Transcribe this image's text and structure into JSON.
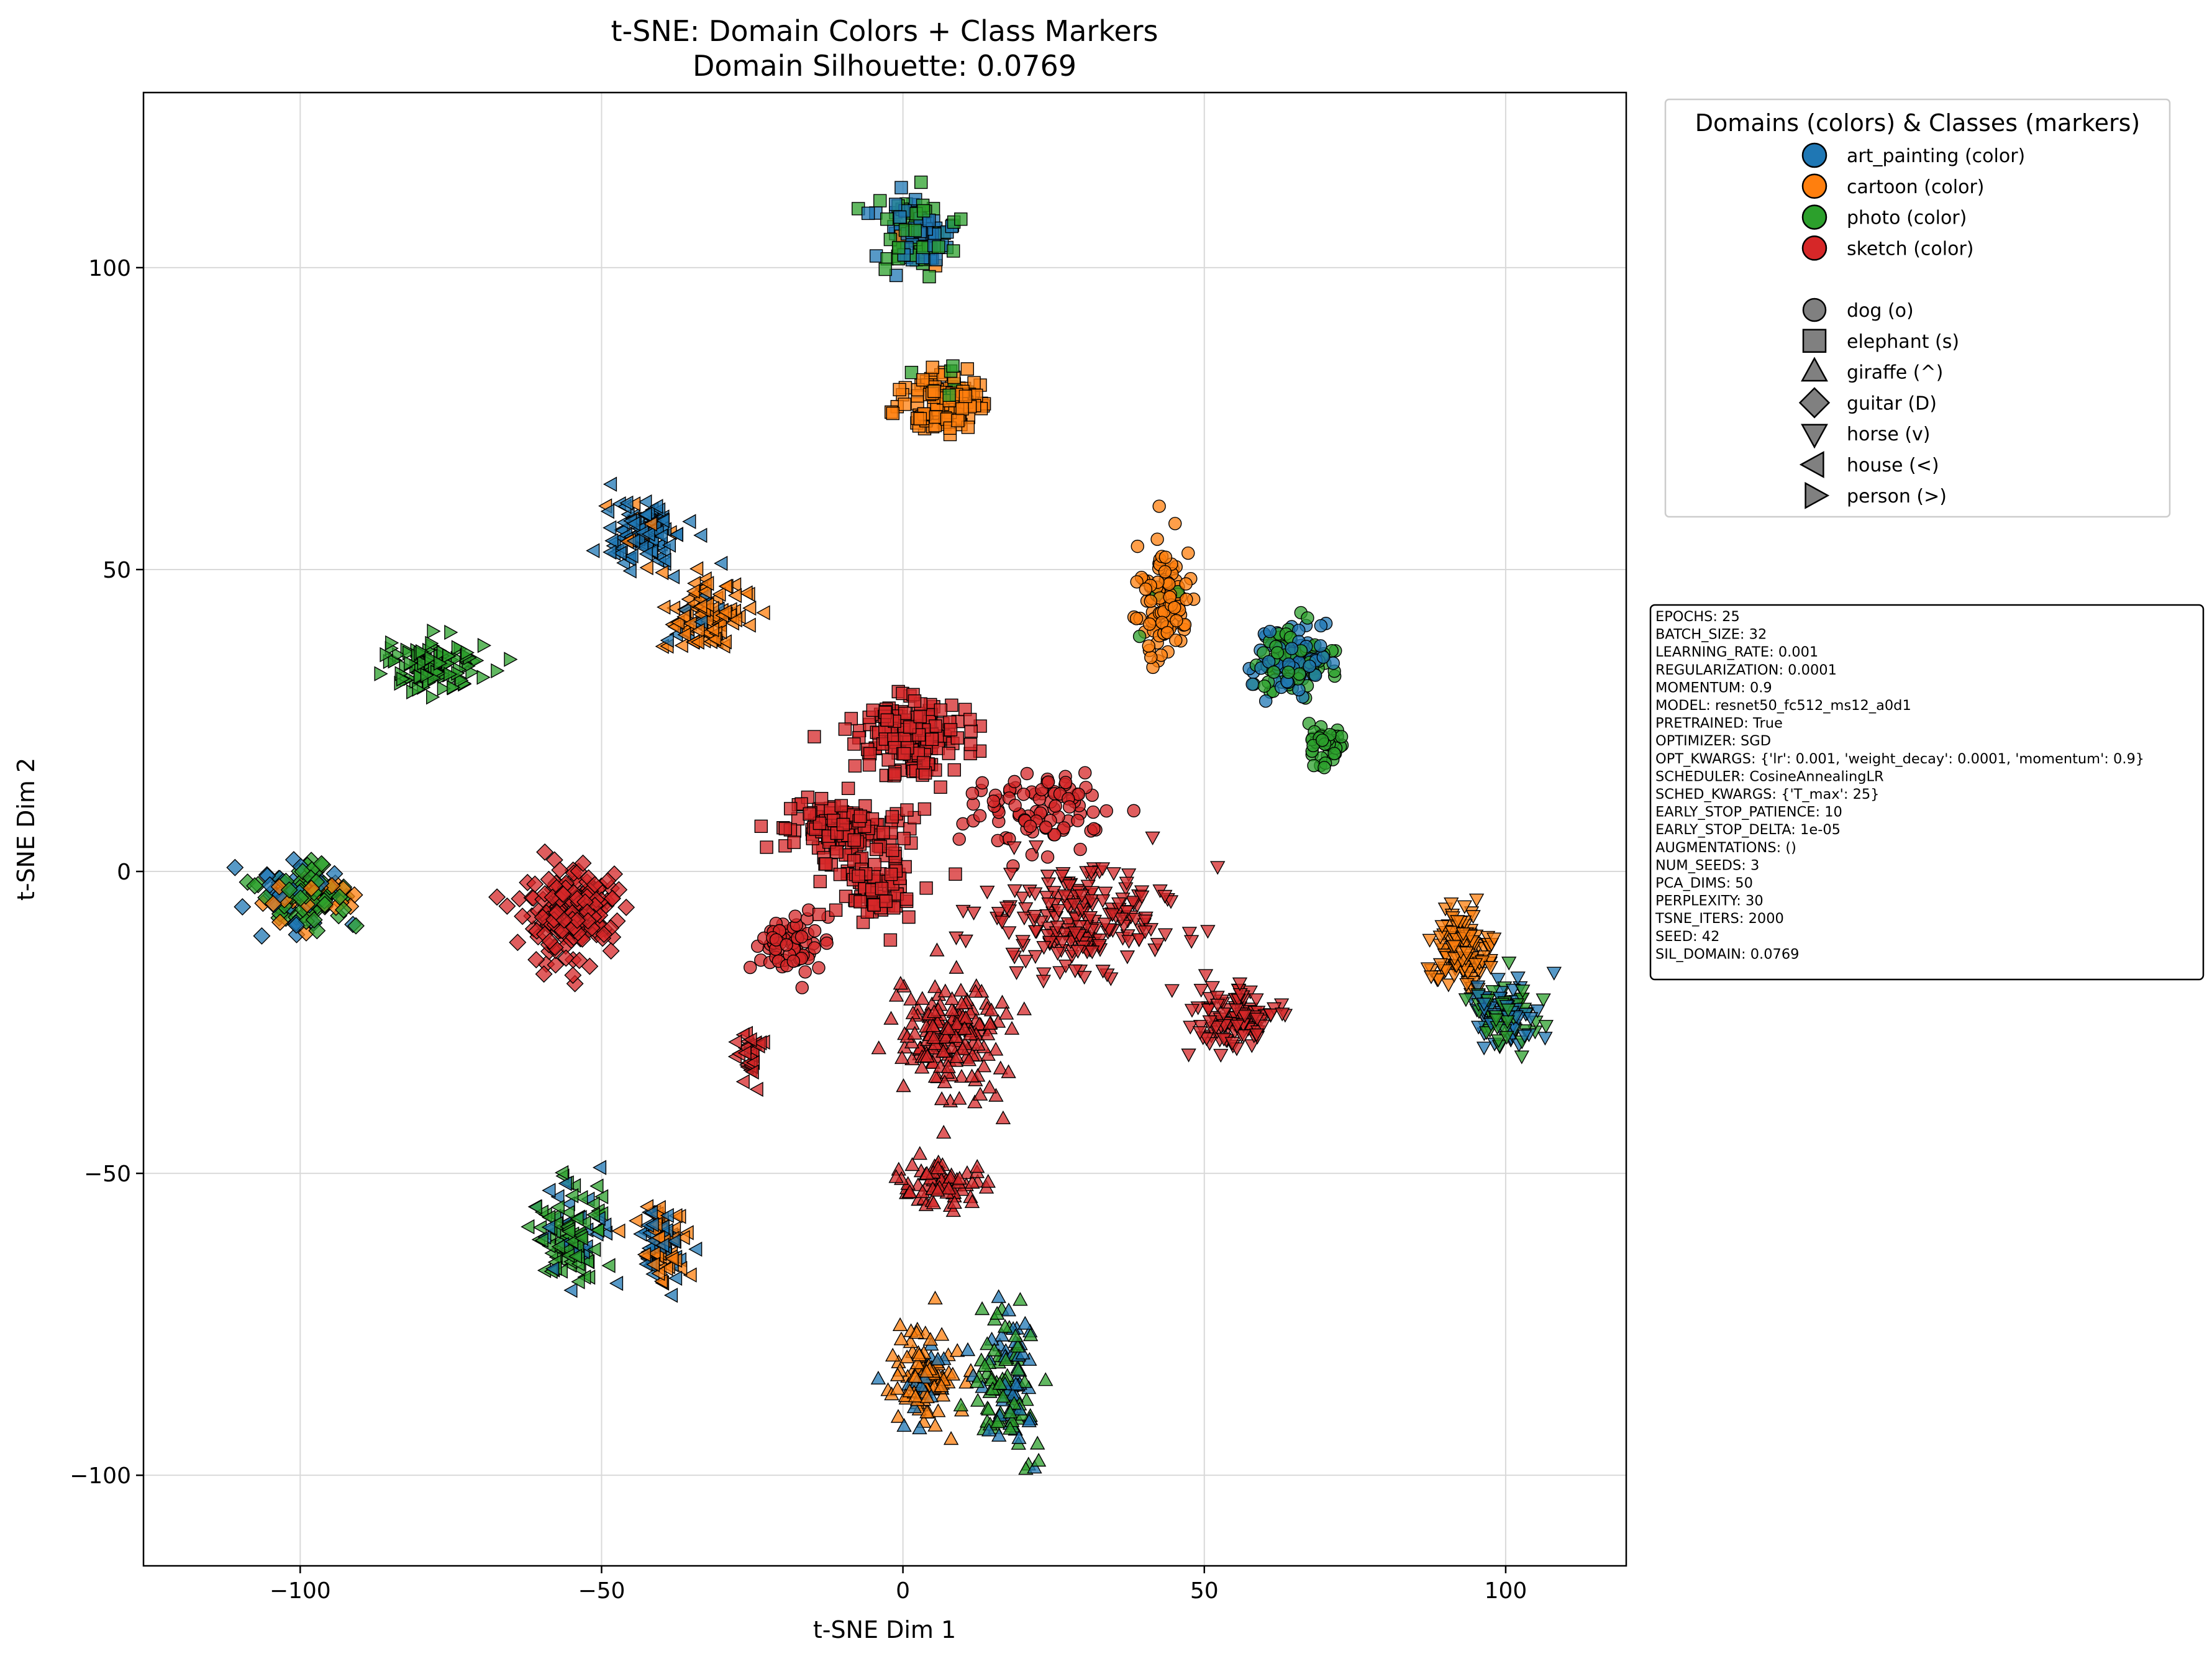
{
  "chart_data": {
    "type": "scatter",
    "title": "t-SNE: Domain Colors + Class Markers",
    "subtitle": "Domain Silhouette: 0.0769",
    "xlabel": "t-SNE Dim 1",
    "ylabel": "t-SNE Dim 2",
    "xlim": [
      -126,
      120
    ],
    "ylim": [
      -115,
      129
    ],
    "xticks": [
      -100,
      -50,
      0,
      50,
      100
    ],
    "yticks": [
      -100,
      -50,
      0,
      50,
      100
    ],
    "xtick_labels": [
      "−100",
      "−50",
      "0",
      "50",
      "100"
    ],
    "ytick_labels": [
      "−100",
      "−50",
      "0",
      "50",
      "100"
    ],
    "grid": true,
    "legend_title": "Domains (colors) & Classes (markers)",
    "legend_placement": "outside-top-right",
    "domains": [
      {
        "key": "art_painting",
        "label": "art_painting (color)",
        "color": "#1f77b4"
      },
      {
        "key": "cartoon",
        "label": "cartoon (color)",
        "color": "#ff7f0e"
      },
      {
        "key": "photo",
        "label": "photo (color)",
        "color": "#2ca02c"
      },
      {
        "key": "sketch",
        "label": "sketch (color)",
        "color": "#d62728"
      }
    ],
    "classes": [
      {
        "key": "dog",
        "label": "dog (o)",
        "marker": "circle"
      },
      {
        "key": "elephant",
        "label": "elephant (s)",
        "marker": "square"
      },
      {
        "key": "giraffe",
        "label": "giraffe (^)",
        "marker": "triangle-up"
      },
      {
        "key": "guitar",
        "label": "guitar (D)",
        "marker": "diamond"
      },
      {
        "key": "horse",
        "label": "horse (v)",
        "marker": "triangle-down"
      },
      {
        "key": "house",
        "label": "house (<)",
        "marker": "triangle-left"
      },
      {
        "key": "person",
        "label": "person (>)",
        "marker": "triangle-right"
      }
    ],
    "marker_legend_color": "#808080",
    "clusters": [
      {
        "class": "elephant",
        "center": [
          2,
          106
        ],
        "spread": [
          6,
          6
        ],
        "count": 110,
        "domains": {
          "art_painting": 0.45,
          "photo": 0.5,
          "cartoon": 0.05
        }
      },
      {
        "class": "elephant",
        "center": [
          7,
          78
        ],
        "spread": [
          6,
          4.5
        ],
        "count": 130,
        "domains": {
          "cartoon": 0.96,
          "photo": 0.04
        }
      },
      {
        "class": "house",
        "center": [
          -43,
          56
        ],
        "spread": [
          6,
          5
        ],
        "count": 110,
        "domains": {
          "art_painting": 0.9,
          "cartoon": 0.1
        }
      },
      {
        "class": "house",
        "center": [
          -33,
          42
        ],
        "spread": [
          6,
          6
        ],
        "count": 110,
        "domains": {
          "cartoon": 0.95,
          "art_painting": 0.05
        }
      },
      {
        "class": "person",
        "center": [
          -78,
          34
        ],
        "spread": [
          8,
          3.5
        ],
        "count": 110,
        "domains": {
          "photo": 1.0
        }
      },
      {
        "class": "dog",
        "center": [
          43,
          44
        ],
        "spread": [
          4,
          8
        ],
        "count": 110,
        "domains": {
          "cartoon": 0.97,
          "photo": 0.03
        }
      },
      {
        "class": "dog",
        "center": [
          64,
          35
        ],
        "spread": [
          6,
          5
        ],
        "count": 140,
        "domains": {
          "art_painting": 0.5,
          "photo": 0.5
        }
      },
      {
        "class": "dog",
        "center": [
          70,
          21
        ],
        "spread": [
          3,
          3
        ],
        "count": 40,
        "domains": {
          "photo": 1.0
        }
      },
      {
        "class": "guitar",
        "center": [
          -100,
          -4
        ],
        "spread": [
          7,
          5
        ],
        "count": 150,
        "domains": {
          "photo": 0.55,
          "art_painting": 0.25,
          "cartoon": 0.2
        }
      },
      {
        "class": "guitar",
        "center": [
          -55,
          -7
        ],
        "spread": [
          7,
          7
        ],
        "count": 200,
        "domains": {
          "sketch": 1.0
        }
      },
      {
        "class": "horse",
        "center": [
          93,
          -13
        ],
        "spread": [
          5,
          7
        ],
        "count": 110,
        "domains": {
          "cartoon": 1.0
        }
      },
      {
        "class": "horse",
        "center": [
          100,
          -24
        ],
        "spread": [
          5,
          6
        ],
        "count": 110,
        "domains": {
          "art_painting": 0.5,
          "photo": 0.5
        }
      },
      {
        "class": "house",
        "center": [
          -55,
          -60
        ],
        "spread": [
          5,
          7
        ],
        "count": 120,
        "domains": {
          "photo": 0.65,
          "art_painting": 0.35
        }
      },
      {
        "class": "house",
        "center": [
          -40,
          -62
        ],
        "spread": [
          4,
          6
        ],
        "count": 90,
        "domains": {
          "cartoon": 0.6,
          "art_painting": 0.4
        }
      },
      {
        "class": "giraffe",
        "center": [
          4,
          -84
        ],
        "spread": [
          5,
          7
        ],
        "count": 110,
        "domains": {
          "cartoon": 0.8,
          "art_painting": 0.2
        }
      },
      {
        "class": "giraffe",
        "center": [
          17,
          -85
        ],
        "spread": [
          5,
          10
        ],
        "count": 120,
        "domains": {
          "art_painting": 0.45,
          "photo": 0.55
        }
      },
      {
        "class": "elephant",
        "center": [
          2,
          22
        ],
        "spread": [
          9,
          6
        ],
        "count": 170,
        "domains": {
          "sketch": 1.0
        }
      },
      {
        "class": "elephant",
        "center": [
          -10,
          8
        ],
        "spread": [
          10,
          4
        ],
        "count": 120,
        "domains": {
          "sketch": 1.0
        }
      },
      {
        "class": "dog",
        "center": [
          22,
          10
        ],
        "spread": [
          10,
          6
        ],
        "count": 90,
        "domains": {
          "sketch": 1.0
        }
      },
      {
        "class": "horse",
        "center": [
          30,
          -8
        ],
        "spread": [
          14,
          8
        ],
        "count": 200,
        "domains": {
          "sketch": 1.0
        }
      },
      {
        "class": "horse",
        "center": [
          55,
          -24
        ],
        "spread": [
          6,
          5
        ],
        "count": 110,
        "domains": {
          "sketch": 1.0
        }
      },
      {
        "class": "giraffe",
        "center": [
          8,
          -28
        ],
        "spread": [
          8,
          9
        ],
        "count": 170,
        "domains": {
          "sketch": 1.0
        }
      },
      {
        "class": "giraffe",
        "center": [
          7,
          -52
        ],
        "spread": [
          6,
          4
        ],
        "count": 70,
        "domains": {
          "sketch": 1.0
        }
      },
      {
        "class": "dog",
        "center": [
          -18,
          -12
        ],
        "spread": [
          6,
          5
        ],
        "count": 70,
        "domains": {
          "sketch": 1.0
        }
      },
      {
        "class": "house",
        "center": [
          -25,
          -30
        ],
        "spread": [
          2,
          5
        ],
        "count": 30,
        "domains": {
          "sketch": 1.0
        }
      },
      {
        "class": "elephant",
        "center": [
          -5,
          -2
        ],
        "spread": [
          7,
          6
        ],
        "count": 90,
        "domains": {
          "sketch": 1.0
        }
      }
    ]
  },
  "config_text": [
    "EPOCHS: 25",
    "BATCH_SIZE: 32",
    "LEARNING_RATE: 0.001",
    "REGULARIZATION: 0.0001",
    "MOMENTUM: 0.9",
    "MODEL: resnet50_fc512_ms12_a0d1",
    "PRETRAINED: True",
    "OPTIMIZER: SGD",
    "OPT_KWARGS: {'lr': 0.001, 'weight_decay': 0.0001, 'momentum': 0.9}",
    "SCHEDULER: CosineAnnealingLR",
    "SCHED_KWARGS: {'T_max': 25}",
    "EARLY_STOP_PATIENCE: 10",
    "EARLY_STOP_DELTA: 1e-05",
    "AUGMENTATIONS: ()",
    "NUM_SEEDS: 3",
    "PCA_DIMS: 50",
    "PERPLEXITY: 30",
    "TSNE_ITERS: 2000",
    "SEED: 42",
    "SIL_DOMAIN: 0.0769"
  ]
}
